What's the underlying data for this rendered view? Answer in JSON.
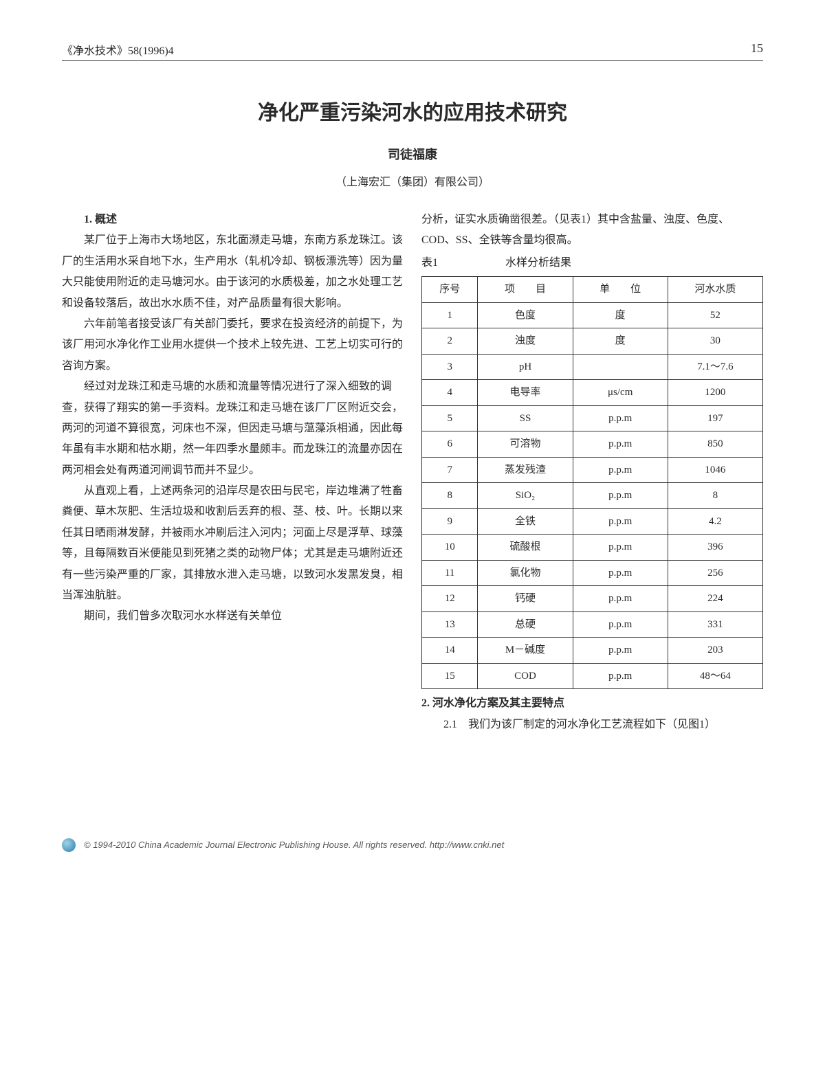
{
  "header": {
    "journal": "《净水技术》58(1996)4",
    "pagenum": "15"
  },
  "title": "净化严重污染河水的应用技术研究",
  "author": "司徒福康",
  "affiliation": "（上海宏汇（集团）有限公司）",
  "left": {
    "sec1_head": "1. 概述",
    "p1": "某厂位于上海市大场地区，东北面濒走马塘，东南方系龙珠江。该厂的生活用水采自地下水，生产用水（轧机冷却、钢板漂洗等）因为量大只能使用附近的走马塘河水。由于该河的水质极差，加之水处理工艺和设备较落后，故出水水质不佳，对产品质量有很大影响。",
    "p2": "六年前笔者接受该厂有关部门委托，要求在投资经济的前提下，为该厂用河水净化作工业用水提供一个技术上较先进、工艺上切实可行的咨询方案。",
    "p3": "经过对龙珠江和走马塘的水质和流量等情况进行了深入细致的调查，获得了翔实的第一手资料。龙珠江和走马塘在该厂厂区附近交会，两河的河道不算很宽，河床也不深，但因走马塘与蕰藻浜相通，因此每年虽有丰水期和枯水期，然一年四季水量颇丰。而龙珠江的流量亦因在两河相会处有两道河闸调节而并不显少。",
    "p4": "从直观上看，上述两条河的沿岸尽是农田与民宅，岸边堆满了牲畜粪便、草木灰肥、生活垃圾和收割后丢弃的根、茎、枝、叶。长期以来任其日晒雨淋发酵，并被雨水冲刷后注入河内；河面上尽是浮草、球藻等，且每隔数百米便能见到死猪之类的动物尸体；尤其是走马塘附近还有一些污染严重的厂家，其排放水泄入走马塘，以致河水发黑发臭，相当浑浊肮脏。",
    "p5": "期间，我们曾多次取河水水样送有关单位"
  },
  "right": {
    "intro": "分析，证实水质确凿很差。（见表1）其中含盐量、浊度、色度、COD、SS、全铁等含量均很高。",
    "table_caption_prefix": "表1",
    "table_caption": "水样分析结果",
    "headers": {
      "c1": "序号",
      "c2": "项　　目",
      "c3": "单　　位",
      "c4": "河水水质"
    },
    "rows": [
      {
        "n": "1",
        "item": "色度",
        "unit": "度",
        "val": "52"
      },
      {
        "n": "2",
        "item": "浊度",
        "unit": "度",
        "val": "30"
      },
      {
        "n": "3",
        "item": "pH",
        "unit": "",
        "val": "7.1～7.6"
      },
      {
        "n": "4",
        "item": "电导率",
        "unit": "μs/cm",
        "val": "1200"
      },
      {
        "n": "5",
        "item": "SS",
        "unit": "p.p.m",
        "val": "197"
      },
      {
        "n": "6",
        "item": "可溶物",
        "unit": "p.p.m",
        "val": "850"
      },
      {
        "n": "7",
        "item": "蒸发残渣",
        "unit": "p.p.m",
        "val": "1046"
      },
      {
        "n": "8",
        "item": "SiO₂",
        "unit": "p.p.m",
        "val": "8"
      },
      {
        "n": "9",
        "item": "全铁",
        "unit": "p.p.m",
        "val": "4.2"
      },
      {
        "n": "10",
        "item": "硫酸根",
        "unit": "p.p.m",
        "val": "396"
      },
      {
        "n": "11",
        "item": "氯化物",
        "unit": "p.p.m",
        "val": "256"
      },
      {
        "n": "12",
        "item": "钙硬",
        "unit": "p.p.m",
        "val": "224"
      },
      {
        "n": "13",
        "item": "总硬",
        "unit": "p.p.m",
        "val": "331"
      },
      {
        "n": "14",
        "item": "M－碱度",
        "unit": "p.p.m",
        "val": "203"
      },
      {
        "n": "15",
        "item": "COD",
        "unit": "p.p.m",
        "val": "48～64"
      }
    ],
    "sec2_head": "2. 河水净化方案及其主要特点",
    "sec21": "2.1　我们为该厂制定的河水净化工艺流程如下（见图1）"
  },
  "footer": "© 1994-2010 China Academic Journal Electronic Publishing House. All rights reserved.   http://www.cnki.net"
}
